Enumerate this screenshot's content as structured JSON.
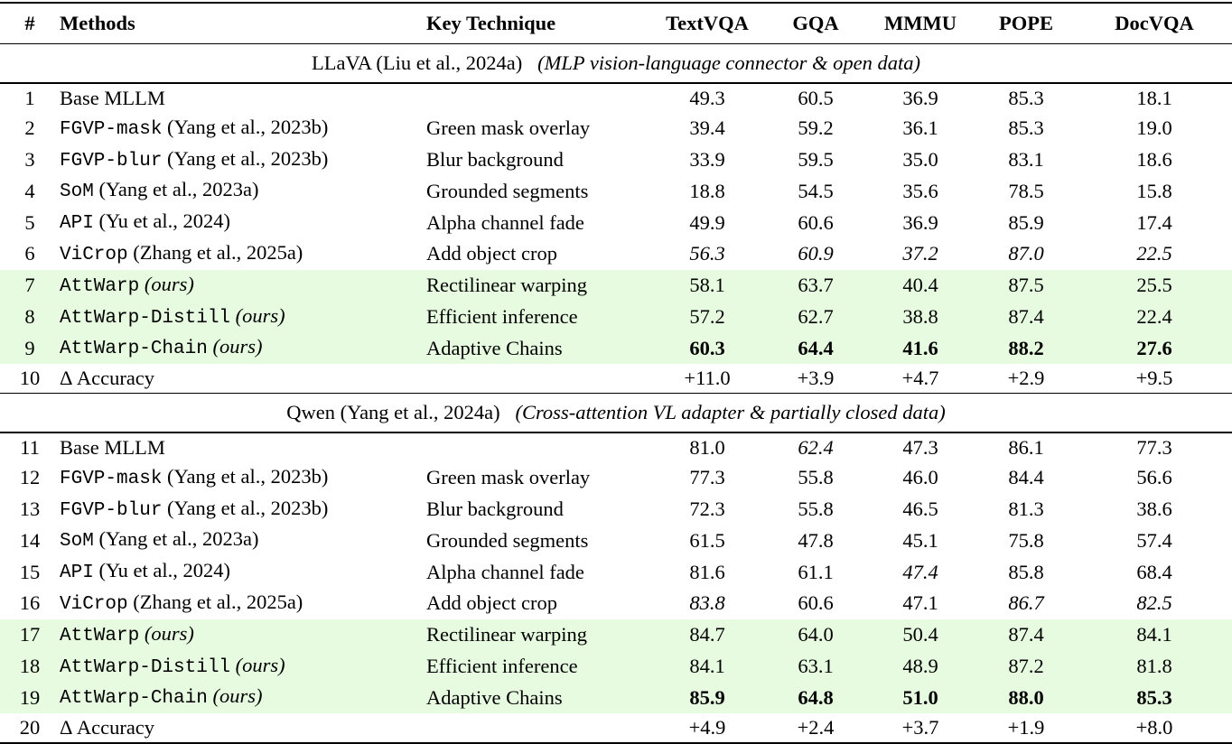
{
  "header": [
    "#",
    "Methods",
    "Key Technique",
    "TextVQA",
    "GQA",
    "MMMU",
    "POPE",
    "DocVQA"
  ],
  "sections": [
    {
      "title": "LLaVA (Liu et al., 2024a)",
      "subtitle": "(MLP vision-language connector & open data)",
      "rows": [
        {
          "idx": "1",
          "method": {
            "code": "",
            "plain": "Base MLLM",
            "ours": ""
          },
          "tech": "",
          "vals": [
            "49.3",
            "60.5",
            "36.9",
            "85.3",
            "18.1"
          ],
          "italic": [],
          "bold": [],
          "green": false
        },
        {
          "idx": "2",
          "method": {
            "code": "FGVP-mask",
            "plain": " (Yang et al., 2023b)",
            "ours": ""
          },
          "tech": "Green mask overlay",
          "vals": [
            "39.4",
            "59.2",
            "36.1",
            "85.3",
            "19.0"
          ],
          "italic": [],
          "bold": [],
          "green": false
        },
        {
          "idx": "3",
          "method": {
            "code": "FGVP-blur",
            "plain": " (Yang et al., 2023b)",
            "ours": ""
          },
          "tech": "Blur background",
          "vals": [
            "33.9",
            "59.5",
            "35.0",
            "83.1",
            "18.6"
          ],
          "italic": [],
          "bold": [],
          "green": false
        },
        {
          "idx": "4",
          "method": {
            "code": "SoM",
            "plain": " (Yang et al., 2023a)",
            "ours": ""
          },
          "tech": "Grounded segments",
          "vals": [
            "18.8",
            "54.5",
            "35.6",
            "78.5",
            "15.8"
          ],
          "italic": [],
          "bold": [],
          "green": false
        },
        {
          "idx": "5",
          "method": {
            "code": "API",
            "plain": " (Yu et al., 2024)",
            "ours": ""
          },
          "tech": "Alpha channel fade",
          "vals": [
            "49.9",
            "60.6",
            "36.9",
            "85.9",
            "17.4"
          ],
          "italic": [],
          "bold": [],
          "green": false
        },
        {
          "idx": "6",
          "method": {
            "code": "ViCrop",
            "plain": " (Zhang et al., 2025a)",
            "ours": ""
          },
          "tech": "Add object crop",
          "vals": [
            "56.3",
            "60.9",
            "37.2",
            "87.0",
            "22.5"
          ],
          "italic": [
            0,
            1,
            2,
            3,
            4
          ],
          "bold": [],
          "green": false
        },
        {
          "idx": "7",
          "method": {
            "code": "AttWarp",
            "plain": "",
            "ours": " (ours)"
          },
          "tech": "Rectilinear warping",
          "vals": [
            "58.1",
            "63.7",
            "40.4",
            "87.5",
            "25.5"
          ],
          "italic": [],
          "bold": [],
          "green": true
        },
        {
          "idx": "8",
          "method": {
            "code": "AttWarp-Distill",
            "plain": "",
            "ours": " (ours)"
          },
          "tech": "Efficient inference",
          "vals": [
            "57.2",
            "62.7",
            "38.8",
            "87.4",
            "22.4"
          ],
          "italic": [],
          "bold": [],
          "green": true
        },
        {
          "idx": "9",
          "method": {
            "code": "AttWarp-Chain",
            "plain": "",
            "ours": " (ours)"
          },
          "tech": "Adaptive Chains",
          "vals": [
            "60.3",
            "64.4",
            "41.6",
            "88.2",
            "27.6"
          ],
          "italic": [],
          "bold": [
            0,
            1,
            2,
            3,
            4
          ],
          "green": true
        },
        {
          "idx": "10",
          "method": {
            "code": "",
            "plain": "Δ Accuracy",
            "ours": ""
          },
          "tech": "",
          "vals": [
            "+11.0",
            "+3.9",
            "+4.7",
            "+2.9",
            "+9.5"
          ],
          "italic": [],
          "bold": [],
          "green": false
        }
      ]
    },
    {
      "title": "Qwen (Yang et al., 2024a)",
      "subtitle": "(Cross-attention VL adapter & partially closed data)",
      "rows": [
        {
          "idx": "11",
          "method": {
            "code": "",
            "plain": "Base MLLM",
            "ours": ""
          },
          "tech": "",
          "vals": [
            "81.0",
            "62.4",
            "47.3",
            "86.1",
            "77.3"
          ],
          "italic": [
            1
          ],
          "bold": [],
          "green": false
        },
        {
          "idx": "12",
          "method": {
            "code": "FGVP-mask",
            "plain": " (Yang et al., 2023b)",
            "ours": ""
          },
          "tech": "Green mask overlay",
          "vals": [
            "77.3",
            "55.8",
            "46.0",
            "84.4",
            "56.6"
          ],
          "italic": [],
          "bold": [],
          "green": false
        },
        {
          "idx": "13",
          "method": {
            "code": "FGVP-blur",
            "plain": " (Yang et al., 2023b)",
            "ours": ""
          },
          "tech": "Blur background",
          "vals": [
            "72.3",
            "55.8",
            "46.5",
            "81.3",
            "38.6"
          ],
          "italic": [],
          "bold": [],
          "green": false
        },
        {
          "idx": "14",
          "method": {
            "code": "SoM",
            "plain": " (Yang et al., 2023a)",
            "ours": ""
          },
          "tech": "Grounded segments",
          "vals": [
            "61.5",
            "47.8",
            "45.1",
            "75.8",
            "57.4"
          ],
          "italic": [],
          "bold": [],
          "green": false
        },
        {
          "idx": "15",
          "method": {
            "code": "API",
            "plain": " (Yu et al., 2024)",
            "ours": ""
          },
          "tech": "Alpha channel fade",
          "vals": [
            "81.6",
            "61.1",
            "47.4",
            "85.8",
            "68.4"
          ],
          "italic": [
            2
          ],
          "bold": [],
          "green": false
        },
        {
          "idx": "16",
          "method": {
            "code": "ViCrop",
            "plain": " (Zhang et al., 2025a)",
            "ours": ""
          },
          "tech": "Add object crop",
          "vals": [
            "83.8",
            "60.6",
            "47.1",
            "86.7",
            "82.5"
          ],
          "italic": [
            0,
            3,
            4
          ],
          "bold": [],
          "green": false
        },
        {
          "idx": "17",
          "method": {
            "code": "AttWarp",
            "plain": "",
            "ours": " (ours)"
          },
          "tech": "Rectilinear warping",
          "vals": [
            "84.7",
            "64.0",
            "50.4",
            "87.4",
            "84.1"
          ],
          "italic": [],
          "bold": [],
          "green": true
        },
        {
          "idx": "18",
          "method": {
            "code": "AttWarp-Distill",
            "plain": "",
            "ours": " (ours)"
          },
          "tech": "Efficient inference",
          "vals": [
            "84.1",
            "63.1",
            "48.9",
            "87.2",
            "81.8"
          ],
          "italic": [],
          "bold": [],
          "green": true
        },
        {
          "idx": "19",
          "method": {
            "code": "AttWarp-Chain",
            "plain": "",
            "ours": " (ours)"
          },
          "tech": "Adaptive Chains",
          "vals": [
            "85.9",
            "64.8",
            "51.0",
            "88.0",
            "85.3"
          ],
          "italic": [],
          "bold": [
            0,
            1,
            2,
            3,
            4
          ],
          "green": true
        },
        {
          "idx": "20",
          "method": {
            "code": "",
            "plain": "Δ Accuracy",
            "ours": ""
          },
          "tech": "",
          "vals": [
            "+4.9",
            "+2.4",
            "+3.7",
            "+1.9",
            "+8.0"
          ],
          "italic": [],
          "bold": [],
          "green": false
        }
      ]
    }
  ]
}
